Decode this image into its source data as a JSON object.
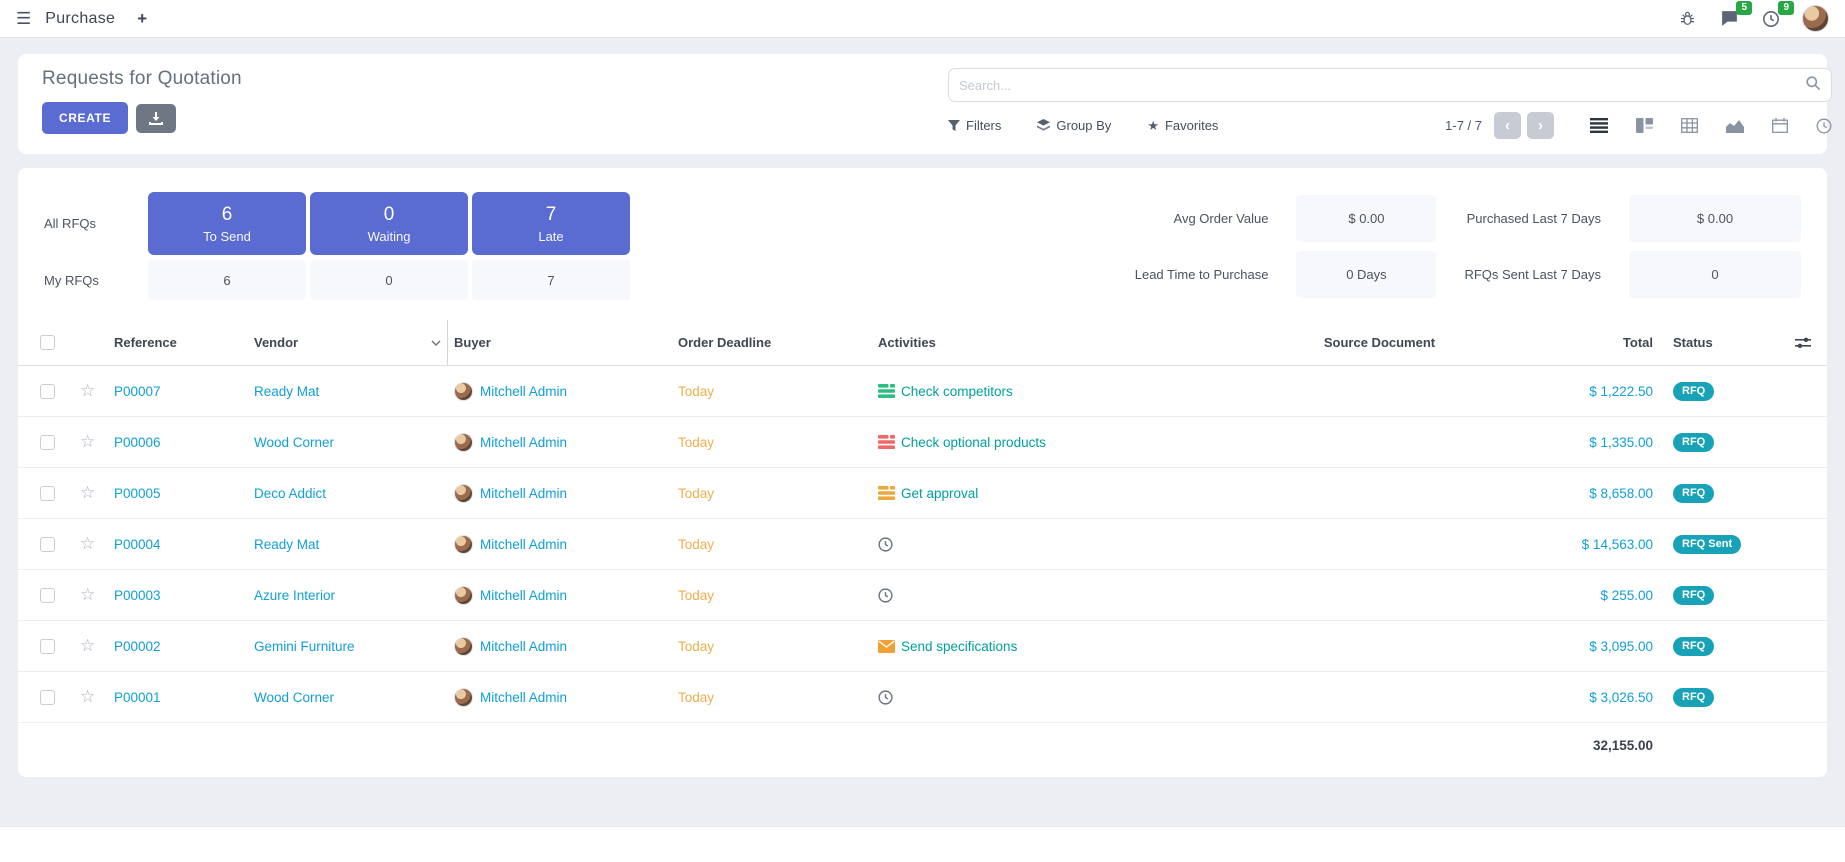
{
  "navbar": {
    "app_name": "Purchase",
    "new_tab_label": "+",
    "messages_badge": "5",
    "activities_badge": "9"
  },
  "control_panel": {
    "title": "Requests for Quotation",
    "create_label": "CREATE",
    "search_placeholder": "Search...",
    "filters_label": "Filters",
    "group_by_label": "Group By",
    "favorites_label": "Favorites",
    "pager_text": "1-7 / 7",
    "prev_label": "‹",
    "next_label": "›"
  },
  "dashboard": {
    "all_label": "All RFQs",
    "my_label": "My RFQs",
    "boxes": [
      {
        "count": "6",
        "label": "To Send",
        "my_count": "6"
      },
      {
        "count": "0",
        "label": "Waiting",
        "my_count": "0"
      },
      {
        "count": "7",
        "label": "Late",
        "my_count": "7"
      }
    ],
    "kpis": [
      {
        "label": "Avg Order Value",
        "value": "$ 0.00"
      },
      {
        "label": "Purchased Last 7 Days",
        "value": "$ 0.00"
      },
      {
        "label": "Lead Time to Purchase",
        "value": "0 Days"
      },
      {
        "label": "RFQs Sent Last 7 Days",
        "value": "0"
      }
    ]
  },
  "table": {
    "headers": {
      "reference": "Reference",
      "vendor": "Vendor",
      "buyer": "Buyer",
      "order_deadline": "Order Deadline",
      "activities": "Activities",
      "source_document": "Source Document",
      "total": "Total",
      "status": "Status"
    },
    "rows": [
      {
        "reference": "P00007",
        "vendor": "Ready Mat",
        "buyer": "Mitchell Admin",
        "deadline": "Today",
        "activity": {
          "type": "tasks",
          "color": "#2dbd82",
          "label": "Check competitors"
        },
        "total": "$ 1,222.50",
        "status": "RFQ"
      },
      {
        "reference": "P00006",
        "vendor": "Wood Corner",
        "buyer": "Mitchell Admin",
        "deadline": "Today",
        "activity": {
          "type": "tasks",
          "color": "#ee6a68",
          "label": "Check optional products"
        },
        "total": "$ 1,335.00",
        "status": "RFQ"
      },
      {
        "reference": "P00005",
        "vendor": "Deco Addict",
        "buyer": "Mitchell Admin",
        "deadline": "Today",
        "activity": {
          "type": "tasks",
          "color": "#eaa93c",
          "label": "Get approval"
        },
        "total": "$ 8,658.00",
        "status": "RFQ"
      },
      {
        "reference": "P00004",
        "vendor": "Ready Mat",
        "buyer": "Mitchell Admin",
        "deadline": "Today",
        "activity": {
          "type": "clock",
          "color": "#6b7280",
          "label": ""
        },
        "total": "$ 14,563.00",
        "status": "RFQ Sent"
      },
      {
        "reference": "P00003",
        "vendor": "Azure Interior",
        "buyer": "Mitchell Admin",
        "deadline": "Today",
        "activity": {
          "type": "clock",
          "color": "#6b7280",
          "label": ""
        },
        "total": "$ 255.00",
        "status": "RFQ"
      },
      {
        "reference": "P00002",
        "vendor": "Gemini Furniture",
        "buyer": "Mitchell Admin",
        "deadline": "Today",
        "activity": {
          "type": "mail",
          "color": "#f0a136",
          "label": "Send specifications"
        },
        "total": "$ 3,095.00",
        "status": "RFQ"
      },
      {
        "reference": "P00001",
        "vendor": "Wood Corner",
        "buyer": "Mitchell Admin",
        "deadline": "Today",
        "activity": {
          "type": "clock",
          "color": "#6b7280",
          "label": ""
        },
        "total": "$ 3,026.50",
        "status": "RFQ"
      }
    ],
    "footer_total": "32,155.00"
  }
}
